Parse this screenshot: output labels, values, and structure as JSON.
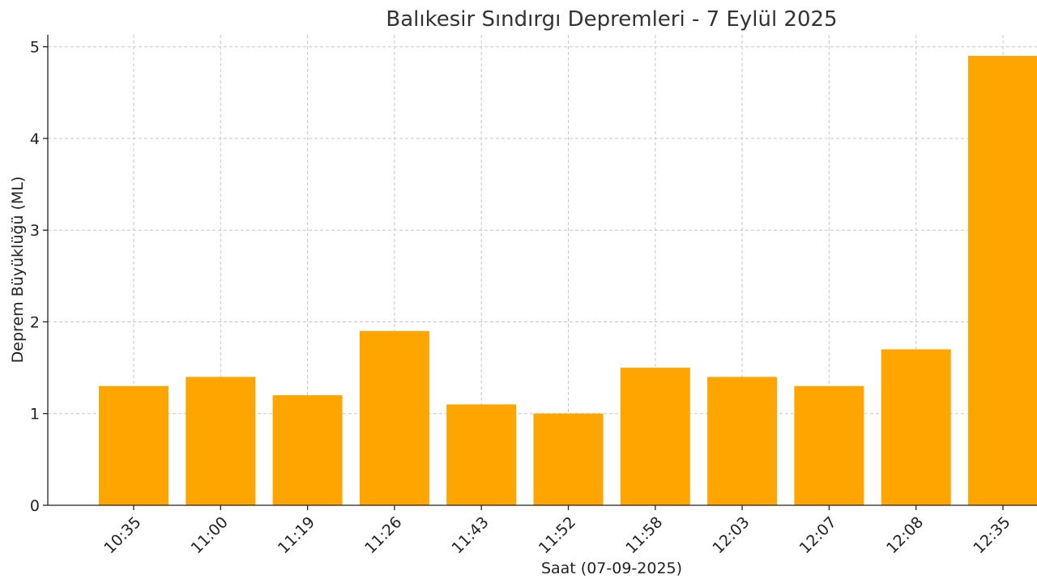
{
  "chart_data": {
    "type": "bar",
    "title": "Balıkesir Sındırgı Depremleri - 7 Eylül 2025",
    "xlabel": "Saat (07-09-2025)",
    "ylabel": "Deprem Büyüklüğü (ML)",
    "categories": [
      "10:35",
      "11:00",
      "11:19",
      "11:26",
      "11:43",
      "11:52",
      "11:58",
      "12:03",
      "12:07",
      "12:08",
      "12:35"
    ],
    "values": [
      1.3,
      1.4,
      1.2,
      1.9,
      1.1,
      1.0,
      1.5,
      1.4,
      1.3,
      1.7,
      4.9
    ],
    "yticks": [
      "0",
      "1",
      "2",
      "3",
      "4",
      "5"
    ],
    "ylim": [
      0,
      5.13
    ],
    "grid": true,
    "bar_color": "#FFA500"
  }
}
